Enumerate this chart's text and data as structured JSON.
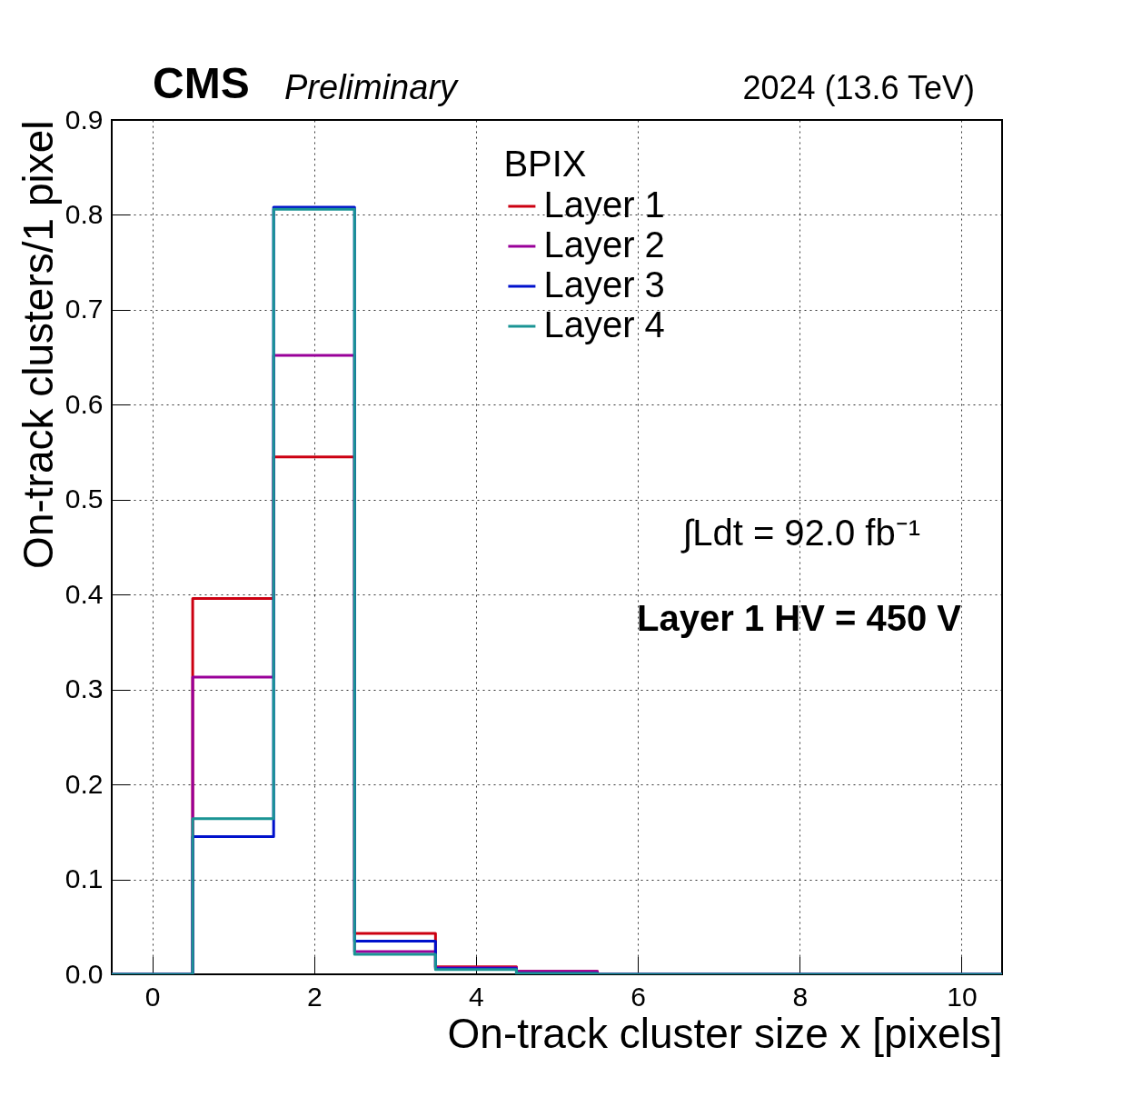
{
  "chart_data": {
    "type": "histogram",
    "xlabel": "On-track cluster size x [pixels]",
    "ylabel": "On-track clusters/1 pixel",
    "legend_title": "BPIX",
    "bins": [
      -0.5,
      0.5,
      1.5,
      2.5,
      3.5,
      4.5,
      5.5,
      6.5,
      7.5,
      8.5,
      9.5,
      10.5
    ],
    "series": [
      {
        "name": "Layer 1",
        "color": "#cc0011",
        "values": [
          0,
          0.396,
          0.545,
          0.043,
          0.008,
          0.003,
          0,
          0,
          0,
          0,
          0
        ]
      },
      {
        "name": "Layer 2",
        "color": "#990099",
        "values": [
          0,
          0.313,
          0.652,
          0.024,
          0.007,
          0.003,
          0,
          0,
          0,
          0,
          0
        ]
      },
      {
        "name": "Layer 3",
        "color": "#0011cc",
        "values": [
          0,
          0.145,
          0.808,
          0.035,
          0.006,
          0.001,
          0,
          0,
          0,
          0,
          0
        ]
      },
      {
        "name": "Layer 4",
        "color": "#1a9494",
        "values": [
          0,
          0.164,
          0.806,
          0.021,
          0.005,
          0.001,
          0,
          0,
          0,
          0,
          0
        ]
      }
    ],
    "xlim": [
      -0.5,
      10.5
    ],
    "xticks": [
      0,
      2,
      4,
      6,
      8,
      10
    ],
    "ylim": [
      0,
      0.9
    ],
    "yticks": [
      {
        "value": 0,
        "label": "0.0"
      },
      0.1,
      0.2,
      0.3,
      0.4,
      0.5,
      0.6,
      0.7,
      0.8,
      0.9
    ],
    "grid": true,
    "legend": "top right",
    "annotations": [
      "CMS",
      "Preliminary",
      "2024 (13.6 TeV)",
      "∫Ldt = 92.0 fb⁻¹",
      "Layer 1 HV = 450 V"
    ]
  }
}
